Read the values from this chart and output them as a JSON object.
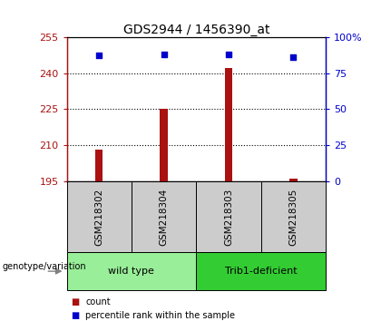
{
  "title": "GDS2944 / 1456390_at",
  "samples": [
    "GSM218302",
    "GSM218304",
    "GSM218303",
    "GSM218305"
  ],
  "counts": [
    208,
    225,
    242,
    196
  ],
  "percentiles": [
    87,
    88,
    88,
    86
  ],
  "y_min": 195,
  "y_max": 255,
  "y_ticks": [
    195,
    210,
    225,
    240,
    255
  ],
  "y2_ticks": [
    0,
    25,
    50,
    75,
    100
  ],
  "bar_color": "#AA1111",
  "dot_color": "#0000CC",
  "groups": [
    {
      "label": "wild type",
      "samples": [
        0,
        1
      ],
      "color": "#99EE99"
    },
    {
      "label": "Trib1-deficient",
      "samples": [
        2,
        3
      ],
      "color": "#33CC33"
    }
  ],
  "group_label": "genotype/variation",
  "legend_count": "count",
  "legend_pct": "percentile rank within the sample",
  "label_box_color": "#CCCCCC",
  "title_fontsize": 10,
  "tick_fontsize": 8,
  "label_fontsize": 7.5
}
